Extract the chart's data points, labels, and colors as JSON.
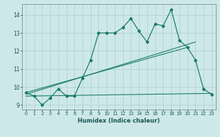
{
  "xlabel": "Humidex (Indice chaleur)",
  "ylabel": "",
  "background_color": "#cde8e8",
  "grid_color": "#aecccc",
  "line_color": "#1a7a6e",
  "xlim": [
    -0.5,
    23.5
  ],
  "ylim": [
    8.75,
    14.6
  ],
  "yticks": [
    9,
    10,
    11,
    12,
    13,
    14
  ],
  "xticks": [
    0,
    1,
    2,
    3,
    4,
    5,
    6,
    7,
    8,
    9,
    10,
    11,
    12,
    13,
    14,
    15,
    16,
    17,
    18,
    19,
    20,
    21,
    22,
    23
  ],
  "series1_x": [
    0,
    1,
    2,
    3,
    4,
    5,
    6,
    7,
    8,
    9,
    10,
    11,
    12,
    13,
    14,
    15,
    16,
    17,
    18,
    19,
    20,
    21,
    22,
    23
  ],
  "series1_y": [
    9.7,
    9.5,
    9.0,
    9.4,
    9.9,
    9.5,
    9.5,
    10.5,
    11.5,
    13.0,
    13.0,
    13.0,
    13.3,
    13.8,
    13.1,
    12.5,
    13.5,
    13.4,
    14.3,
    12.6,
    12.2,
    11.5,
    9.9,
    9.6
  ],
  "line1_x": [
    0,
    20
  ],
  "line1_y": [
    9.7,
    12.2
  ],
  "line2_x": [
    0,
    21
  ],
  "line2_y": [
    9.6,
    12.5
  ],
  "line3_x": [
    0,
    23
  ],
  "line3_y": [
    9.5,
    9.65
  ]
}
